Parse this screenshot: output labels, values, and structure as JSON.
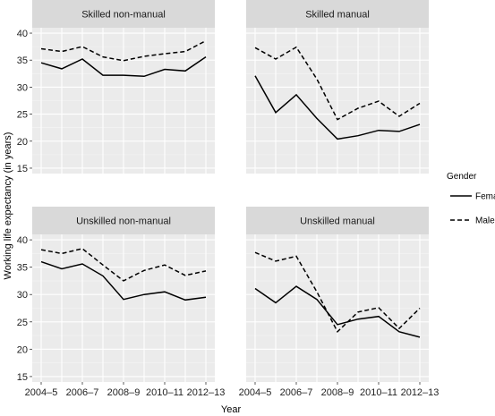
{
  "chart_data": {
    "type": "line",
    "facets": [
      "Skilled non-manual",
      "Skilled manual",
      "Unskilled non-manual",
      "Unskilled manual"
    ],
    "x": [
      "2004–5",
      "2005–6",
      "2006–7",
      "2007–8",
      "2008–9",
      "2009–10",
      "2010–11",
      "2011–12",
      "2012–13"
    ],
    "xtick_labels": [
      "2004–5",
      "2006–7",
      "2008–9",
      "2010–11",
      "2012–13"
    ],
    "ylim": [
      14,
      41
    ],
    "yticks": [
      15,
      20,
      25,
      30,
      35,
      40
    ],
    "xlabel": "Year",
    "ylabel": "Working life expectancy (in years)",
    "grid": true,
    "legend": {
      "title": "Gender",
      "position": "right",
      "items": [
        {
          "label": "Female",
          "linestyle": "solid"
        },
        {
          "label": "Male",
          "linestyle": "dashed"
        }
      ]
    },
    "panels": [
      {
        "title": "Skilled non-manual",
        "series": [
          {
            "name": "Female",
            "values": [
              34.5,
              33.4,
              35.2,
              32.2,
              32.2,
              32.0,
              33.3,
              33.0,
              35.6
            ]
          },
          {
            "name": "Male",
            "values": [
              37.1,
              36.6,
              37.5,
              35.6,
              34.9,
              35.7,
              36.2,
              36.6,
              38.6
            ]
          }
        ]
      },
      {
        "title": "Skilled manual",
        "series": [
          {
            "name": "Female",
            "values": [
              32.1,
              25.3,
              28.6,
              24.2,
              20.4,
              21.0,
              22.0,
              21.8,
              23.1
            ]
          },
          {
            "name": "Male",
            "values": [
              37.3,
              35.2,
              37.4,
              31.5,
              24.0,
              26.1,
              27.4,
              24.6,
              27.0
            ]
          }
        ]
      },
      {
        "title": "Unskilled non-manual",
        "series": [
          {
            "name": "Female",
            "values": [
              36.0,
              34.7,
              35.6,
              33.4,
              29.1,
              30.0,
              30.5,
              29.0,
              29.5
            ]
          },
          {
            "name": "Male",
            "values": [
              38.2,
              37.5,
              38.4,
              35.4,
              32.5,
              34.4,
              35.4,
              33.5,
              34.3
            ]
          }
        ]
      },
      {
        "title": "Unskilled manual",
        "series": [
          {
            "name": "Female",
            "values": [
              31.1,
              28.5,
              31.5,
              29.1,
              24.5,
              25.5,
              26.0,
              23.2,
              22.2
            ]
          },
          {
            "name": "Male",
            "values": [
              37.7,
              36.1,
              37.0,
              30.5,
              23.2,
              26.8,
              27.6,
              23.8,
              27.5
            ]
          }
        ]
      }
    ]
  }
}
